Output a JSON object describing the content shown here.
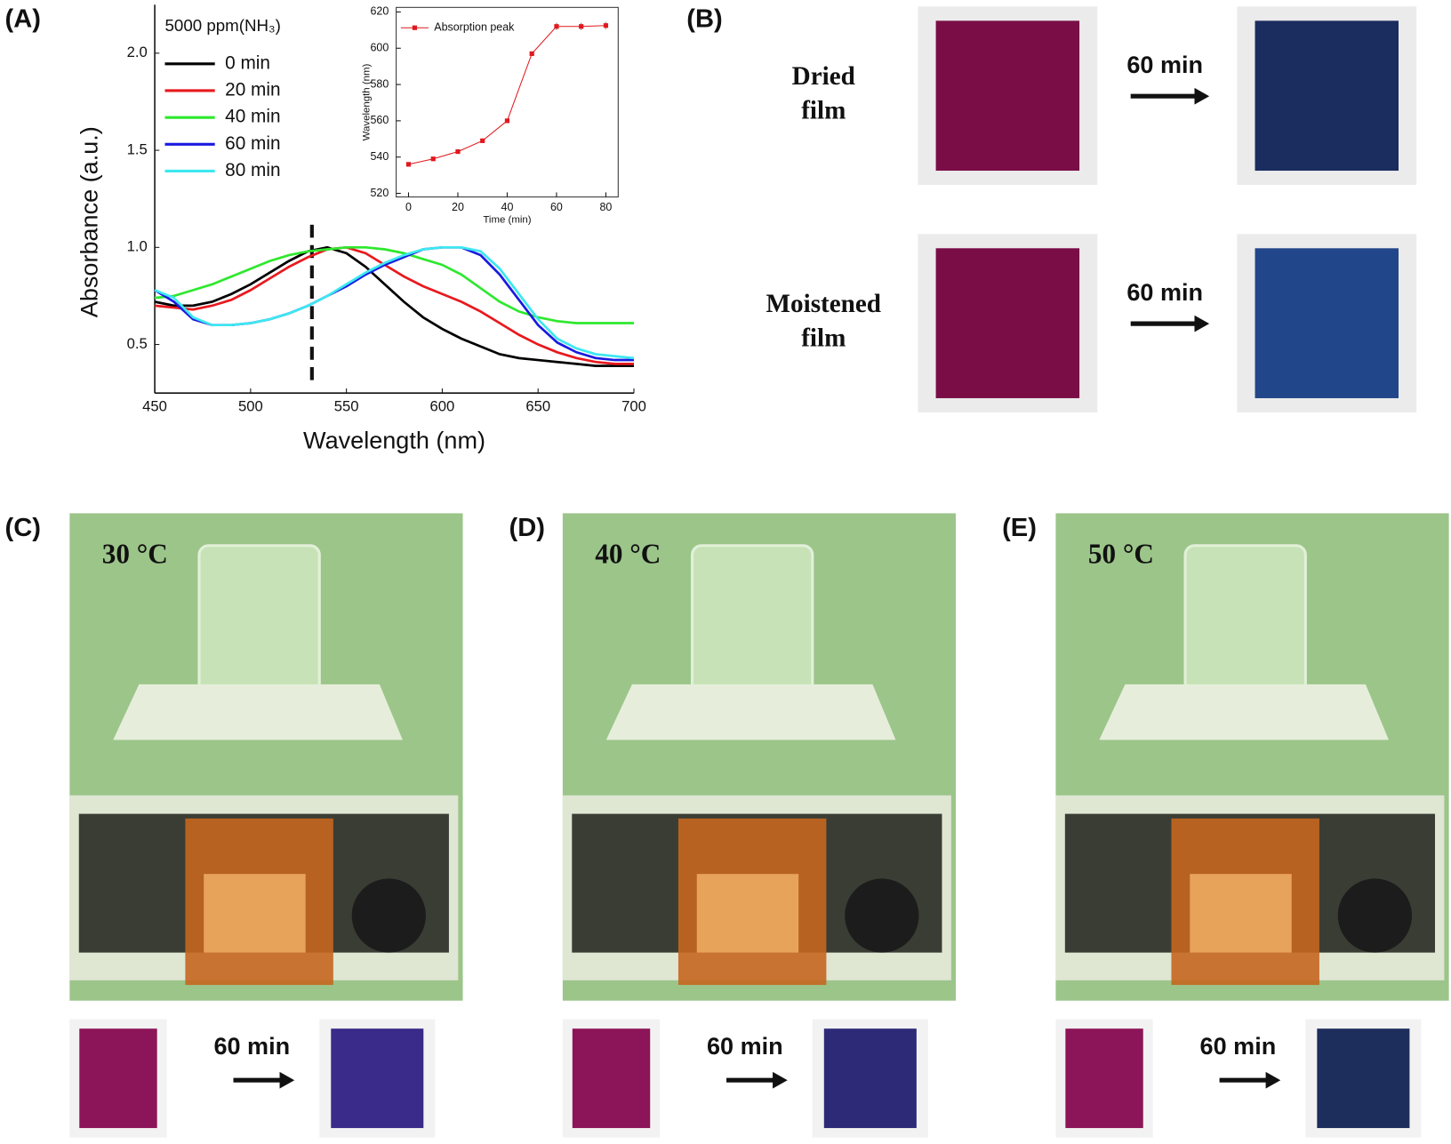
{
  "panel_labels": [
    "(A)",
    "(B)",
    "(C)",
    "(D)",
    "(E)"
  ],
  "chart_data": [
    {
      "type": "line",
      "x_label": "Wavelength (nm)",
      "y_label": "Absorbance (a.u.)",
      "legend_title": "5000 ppm(NH₃)",
      "x": [
        450,
        460,
        470,
        480,
        490,
        500,
        510,
        520,
        530,
        540,
        550,
        560,
        570,
        580,
        590,
        600,
        610,
        620,
        630,
        640,
        650,
        660,
        670,
        680,
        690,
        700
      ],
      "series": [
        {
          "name": "0 min",
          "color": "#000000",
          "values": [
            0.72,
            0.7,
            0.7,
            0.72,
            0.76,
            0.81,
            0.87,
            0.93,
            0.98,
            1.0,
            0.97,
            0.9,
            0.81,
            0.72,
            0.64,
            0.58,
            0.53,
            0.49,
            0.45,
            0.43,
            0.42,
            0.41,
            0.4,
            0.39,
            0.39,
            0.39
          ]
        },
        {
          "name": "20 min",
          "color": "#e8191e",
          "values": [
            0.7,
            0.69,
            0.68,
            0.7,
            0.73,
            0.78,
            0.84,
            0.9,
            0.95,
            0.99,
            1.0,
            0.97,
            0.91,
            0.85,
            0.8,
            0.76,
            0.72,
            0.67,
            0.61,
            0.55,
            0.5,
            0.46,
            0.43,
            0.41,
            0.4,
            0.4
          ]
        },
        {
          "name": "40 min",
          "color": "#2ee82e",
          "values": [
            0.74,
            0.75,
            0.78,
            0.81,
            0.85,
            0.89,
            0.93,
            0.96,
            0.98,
            0.99,
            1.0,
            1.0,
            0.99,
            0.97,
            0.94,
            0.91,
            0.86,
            0.79,
            0.72,
            0.67,
            0.64,
            0.62,
            0.61,
            0.61,
            0.61,
            0.61
          ]
        },
        {
          "name": "60 min",
          "color": "#1a1ae0",
          "values": [
            0.78,
            0.72,
            0.63,
            0.6,
            0.6,
            0.61,
            0.63,
            0.66,
            0.7,
            0.75,
            0.8,
            0.86,
            0.91,
            0.95,
            0.99,
            1.0,
            1.0,
            0.96,
            0.86,
            0.73,
            0.6,
            0.51,
            0.46,
            0.43,
            0.42,
            0.42
          ]
        },
        {
          "name": "80 min",
          "color": "#3de8f0",
          "values": [
            0.78,
            0.74,
            0.64,
            0.6,
            0.6,
            0.61,
            0.63,
            0.66,
            0.7,
            0.75,
            0.81,
            0.87,
            0.92,
            0.96,
            0.99,
            1.0,
            1.0,
            0.98,
            0.89,
            0.76,
            0.63,
            0.53,
            0.48,
            0.45,
            0.44,
            0.43
          ]
        }
      ],
      "vline_x": 532,
      "xlim": [
        450,
        700
      ],
      "xticks": [
        450,
        500,
        550,
        600,
        650,
        700
      ],
      "ylim": [
        0.25,
        2.25
      ],
      "yticks": [
        0.5,
        {
          "value": 1,
          "label": "1.0"
        },
        1.5,
        {
          "value": 2,
          "label": "2.0"
        }
      ]
    },
    {
      "type": "line",
      "x_label": "Time (min)",
      "y_label": "Wavelength (nm)",
      "x": [
        0,
        10,
        20,
        30,
        40,
        50,
        60,
        70,
        80
      ],
      "series": [
        {
          "name": "Absorption peak",
          "color": "#e0191e",
          "values": [
            536,
            539,
            543,
            549,
            560,
            597,
            612,
            612,
            612.5
          ],
          "errors": [
            0,
            0,
            0,
            0,
            0,
            0,
            2,
            2,
            2
          ]
        }
      ],
      "xlim": [
        -5,
        85
      ],
      "xticks": [
        0,
        20,
        40,
        60,
        80
      ],
      "ylim": [
        518,
        622.5
      ],
      "yticks": [
        520,
        540,
        560,
        580,
        600,
        620
      ]
    }
  ],
  "film_test": [
    {
      "label_lines": [
        "Dried",
        "film"
      ],
      "arrow": "60 min"
    },
    {
      "label_lines": [
        "Moistened",
        "film"
      ],
      "arrow": "60 min"
    }
  ],
  "temperature_test": [
    {
      "temperature": "30 °C",
      "arrow": "60 min"
    },
    {
      "temperature": "40 °C",
      "arrow": "60 min"
    },
    {
      "temperature": "50 °C",
      "arrow": "60 min"
    }
  ]
}
